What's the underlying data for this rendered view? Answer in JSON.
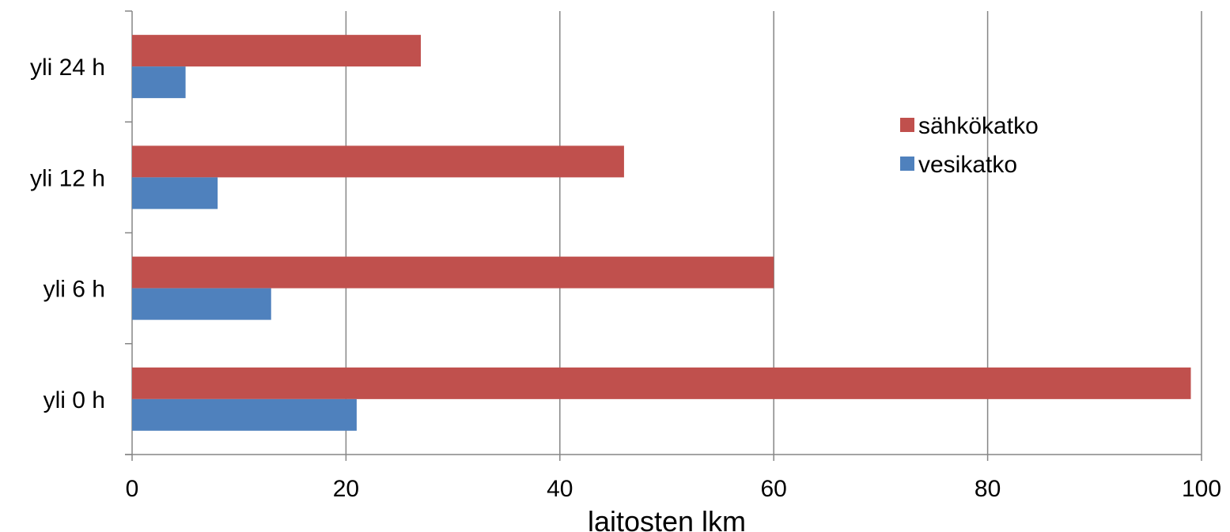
{
  "chart_data": {
    "type": "bar",
    "orientation": "horizontal",
    "categories": [
      "yli 0 h",
      "yli 6 h",
      "yli 12 h",
      "yli 24 h"
    ],
    "series": [
      {
        "name": "vesikatko",
        "color": "#4F81BD",
        "values": [
          21,
          13,
          8,
          5
        ]
      },
      {
        "name": "sähkökatko",
        "color": "#C0504D",
        "values": [
          99,
          60,
          46,
          27
        ]
      }
    ],
    "xlabel": "laitosten lkm",
    "ylabel": "",
    "xlim": [
      0,
      100
    ],
    "xticks": [
      0,
      20,
      40,
      60,
      80,
      100
    ],
    "grid": "vertical",
    "legend_position": "right"
  }
}
